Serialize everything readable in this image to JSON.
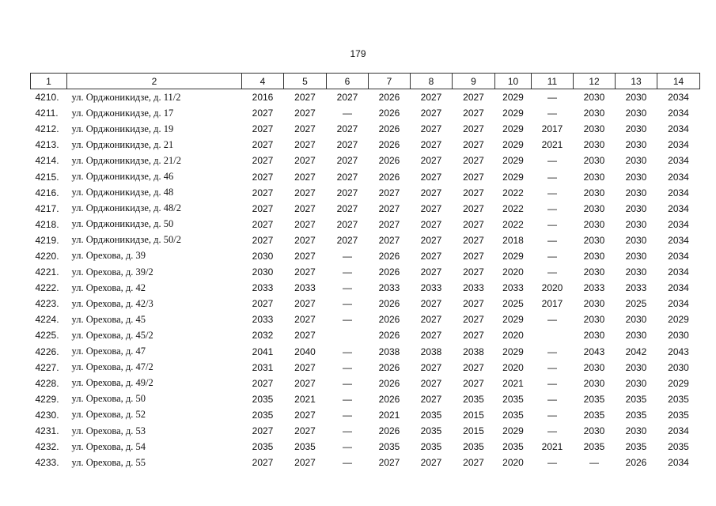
{
  "page_number": "179",
  "table": {
    "header": [
      "1",
      "2",
      "4",
      "5",
      "6",
      "7",
      "8",
      "9",
      "10",
      "11",
      "12",
      "13",
      "14"
    ],
    "rows": [
      [
        "4210.",
        "ул. Орджоникидзе, д. 11/2",
        "2016",
        "2027",
        "2027",
        "2026",
        "2027",
        "2027",
        "2029",
        "—",
        "2030",
        "2030",
        "2034"
      ],
      [
        "4211.",
        "ул. Орджоникидзе, д. 17",
        "2027",
        "2027",
        "—",
        "2026",
        "2027",
        "2027",
        "2029",
        "—",
        "2030",
        "2030",
        "2034"
      ],
      [
        "4212.",
        "ул. Орджоникидзе, д. 19",
        "2027",
        "2027",
        "2027",
        "2026",
        "2027",
        "2027",
        "2029",
        "2017",
        "2030",
        "2030",
        "2034"
      ],
      [
        "4213.",
        "ул. Орджоникидзе, д. 21",
        "2027",
        "2027",
        "2027",
        "2026",
        "2027",
        "2027",
        "2029",
        "2021",
        "2030",
        "2030",
        "2034"
      ],
      [
        "4214.",
        "ул. Орджоникидзе, д. 21/2",
        "2027",
        "2027",
        "2027",
        "2026",
        "2027",
        "2027",
        "2029",
        "—",
        "2030",
        "2030",
        "2034"
      ],
      [
        "4215.",
        "ул. Орджоникидзе, д. 46",
        "2027",
        "2027",
        "2027",
        "2026",
        "2027",
        "2027",
        "2029",
        "—",
        "2030",
        "2030",
        "2034"
      ],
      [
        "4216.",
        "ул. Орджоникидзе, д. 48",
        "2027",
        "2027",
        "2027",
        "2027",
        "2027",
        "2027",
        "2022",
        "—",
        "2030",
        "2030",
        "2034"
      ],
      [
        "4217.",
        "ул. Орджоникидзе, д. 48/2",
        "2027",
        "2027",
        "2027",
        "2027",
        "2027",
        "2027",
        "2022",
        "—",
        "2030",
        "2030",
        "2034"
      ],
      [
        "4218.",
        "ул. Орджоникидзе, д. 50",
        "2027",
        "2027",
        "2027",
        "2027",
        "2027",
        "2027",
        "2022",
        "—",
        "2030",
        "2030",
        "2034"
      ],
      [
        "4219.",
        "ул. Орджоникидзе, д. 50/2",
        "2027",
        "2027",
        "2027",
        "2027",
        "2027",
        "2027",
        "2018",
        "—",
        "2030",
        "2030",
        "2034"
      ],
      [
        "4220.",
        "ул. Орехова, д. 39",
        "2030",
        "2027",
        "—",
        "2026",
        "2027",
        "2027",
        "2029",
        "—",
        "2030",
        "2030",
        "2034"
      ],
      [
        "4221.",
        "ул. Орехова, д. 39/2",
        "2030",
        "2027",
        "—",
        "2026",
        "2027",
        "2027",
        "2020",
        "—",
        "2030",
        "2030",
        "2034"
      ],
      [
        "4222.",
        "ул. Орехова, д. 42",
        "2033",
        "2033",
        "—",
        "2033",
        "2033",
        "2033",
        "2033",
        "2020",
        "2033",
        "2033",
        "2034"
      ],
      [
        "4223.",
        "ул. Орехова, д. 42/3",
        "2027",
        "2027",
        "—",
        "2026",
        "2027",
        "2027",
        "2025",
        "2017",
        "2030",
        "2025",
        "2034"
      ],
      [
        "4224.",
        "ул. Орехова, д. 45",
        "2033",
        "2027",
        "—",
        "2026",
        "2027",
        "2027",
        "2029",
        "—",
        "2030",
        "2030",
        "2029"
      ],
      [
        "4225.",
        "ул. Орехова, д. 45/2",
        "2032",
        "2027",
        null,
        "2026",
        "2027",
        "2027",
        "2020",
        null,
        "2030",
        "2030",
        "2030"
      ],
      [
        "4226.",
        "ул. Орехова, д. 47",
        "2041",
        "2040",
        "—",
        "2038",
        "2038",
        "2038",
        "2029",
        "—",
        "2043",
        "2042",
        "2043"
      ],
      [
        "4227.",
        "ул. Орехова, д. 47/2",
        "2031",
        "2027",
        "—",
        "2026",
        "2027",
        "2027",
        "2020",
        "—",
        "2030",
        "2030",
        "2030"
      ],
      [
        "4228.",
        "ул. Орехова, д. 49/2",
        "2027",
        "2027",
        "—",
        "2026",
        "2027",
        "2027",
        "2021",
        "—",
        "2030",
        "2030",
        "2029"
      ],
      [
        "4229.",
        "ул. Орехова, д. 50",
        "2035",
        "2021",
        "—",
        "2026",
        "2027",
        "2035",
        "2035",
        "—",
        "2035",
        "2035",
        "2035"
      ],
      [
        "4230.",
        "ул. Орехова, д. 52",
        "2035",
        "2027",
        "—",
        "2021",
        "2035",
        "2015",
        "2035",
        "—",
        "2035",
        "2035",
        "2035"
      ],
      [
        "4231.",
        "ул. Орехова, д. 53",
        "2027",
        "2027",
        "—",
        "2026",
        "2035",
        "2015",
        "2029",
        "—",
        "2030",
        "2030",
        "2034"
      ],
      [
        "4232.",
        "ул. Орехова, д. 54",
        "2035",
        "2035",
        "—",
        "2035",
        "2035",
        "2035",
        "2035",
        "2021",
        "2035",
        "2035",
        "2035"
      ],
      [
        "4233.",
        "ул. Орехова, д. 55",
        "2027",
        "2027",
        "—",
        "2027",
        "2027",
        "2027",
        "2020",
        "—",
        "—",
        "2026",
        "2034"
      ]
    ]
  }
}
